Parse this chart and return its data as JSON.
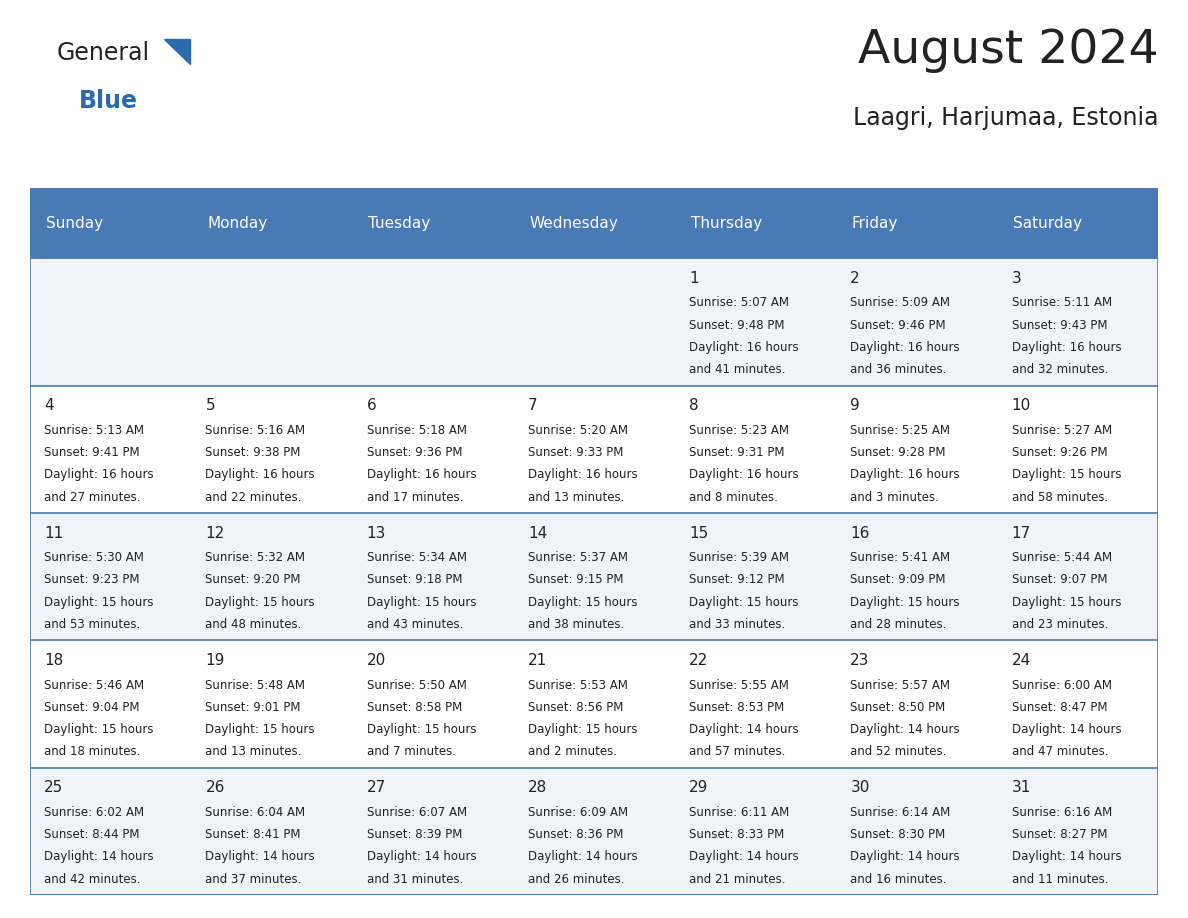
{
  "title": "August 2024",
  "subtitle": "Laagri, Harjumaa, Estonia",
  "header_color": "#4a7ab5",
  "header_text_color": "#ffffff",
  "day_names": [
    "Sunday",
    "Monday",
    "Tuesday",
    "Wednesday",
    "Thursday",
    "Friday",
    "Saturday"
  ],
  "bg_color": "#ffffff",
  "cell_bg_odd": "#f0f4f8",
  "cell_bg_even": "#ffffff",
  "text_color": "#222222",
  "grid_color": "#4a7ab5",
  "logo_general_color": "#222222",
  "logo_blue_color": "#2a6aad",
  "logo_triangle_color": "#2a6aad",
  "days": [
    {
      "day": 1,
      "col": 4,
      "row": 0,
      "sunrise": "5:07 AM",
      "sunset": "9:48 PM",
      "daylight": "16 hours and 41 minutes."
    },
    {
      "day": 2,
      "col": 5,
      "row": 0,
      "sunrise": "5:09 AM",
      "sunset": "9:46 PM",
      "daylight": "16 hours and 36 minutes."
    },
    {
      "day": 3,
      "col": 6,
      "row": 0,
      "sunrise": "5:11 AM",
      "sunset": "9:43 PM",
      "daylight": "16 hours and 32 minutes."
    },
    {
      "day": 4,
      "col": 0,
      "row": 1,
      "sunrise": "5:13 AM",
      "sunset": "9:41 PM",
      "daylight": "16 hours and 27 minutes."
    },
    {
      "day": 5,
      "col": 1,
      "row": 1,
      "sunrise": "5:16 AM",
      "sunset": "9:38 PM",
      "daylight": "16 hours and 22 minutes."
    },
    {
      "day": 6,
      "col": 2,
      "row": 1,
      "sunrise": "5:18 AM",
      "sunset": "9:36 PM",
      "daylight": "16 hours and 17 minutes."
    },
    {
      "day": 7,
      "col": 3,
      "row": 1,
      "sunrise": "5:20 AM",
      "sunset": "9:33 PM",
      "daylight": "16 hours and 13 minutes."
    },
    {
      "day": 8,
      "col": 4,
      "row": 1,
      "sunrise": "5:23 AM",
      "sunset": "9:31 PM",
      "daylight": "16 hours and 8 minutes."
    },
    {
      "day": 9,
      "col": 5,
      "row": 1,
      "sunrise": "5:25 AM",
      "sunset": "9:28 PM",
      "daylight": "16 hours and 3 minutes."
    },
    {
      "day": 10,
      "col": 6,
      "row": 1,
      "sunrise": "5:27 AM",
      "sunset": "9:26 PM",
      "daylight": "15 hours and 58 minutes."
    },
    {
      "day": 11,
      "col": 0,
      "row": 2,
      "sunrise": "5:30 AM",
      "sunset": "9:23 PM",
      "daylight": "15 hours and 53 minutes."
    },
    {
      "day": 12,
      "col": 1,
      "row": 2,
      "sunrise": "5:32 AM",
      "sunset": "9:20 PM",
      "daylight": "15 hours and 48 minutes."
    },
    {
      "day": 13,
      "col": 2,
      "row": 2,
      "sunrise": "5:34 AM",
      "sunset": "9:18 PM",
      "daylight": "15 hours and 43 minutes."
    },
    {
      "day": 14,
      "col": 3,
      "row": 2,
      "sunrise": "5:37 AM",
      "sunset": "9:15 PM",
      "daylight": "15 hours and 38 minutes."
    },
    {
      "day": 15,
      "col": 4,
      "row": 2,
      "sunrise": "5:39 AM",
      "sunset": "9:12 PM",
      "daylight": "15 hours and 33 minutes."
    },
    {
      "day": 16,
      "col": 5,
      "row": 2,
      "sunrise": "5:41 AM",
      "sunset": "9:09 PM",
      "daylight": "15 hours and 28 minutes."
    },
    {
      "day": 17,
      "col": 6,
      "row": 2,
      "sunrise": "5:44 AM",
      "sunset": "9:07 PM",
      "daylight": "15 hours and 23 minutes."
    },
    {
      "day": 18,
      "col": 0,
      "row": 3,
      "sunrise": "5:46 AM",
      "sunset": "9:04 PM",
      "daylight": "15 hours and 18 minutes."
    },
    {
      "day": 19,
      "col": 1,
      "row": 3,
      "sunrise": "5:48 AM",
      "sunset": "9:01 PM",
      "daylight": "15 hours and 13 minutes."
    },
    {
      "day": 20,
      "col": 2,
      "row": 3,
      "sunrise": "5:50 AM",
      "sunset": "8:58 PM",
      "daylight": "15 hours and 7 minutes."
    },
    {
      "day": 21,
      "col": 3,
      "row": 3,
      "sunrise": "5:53 AM",
      "sunset": "8:56 PM",
      "daylight": "15 hours and 2 minutes."
    },
    {
      "day": 22,
      "col": 4,
      "row": 3,
      "sunrise": "5:55 AM",
      "sunset": "8:53 PM",
      "daylight": "14 hours and 57 minutes."
    },
    {
      "day": 23,
      "col": 5,
      "row": 3,
      "sunrise": "5:57 AM",
      "sunset": "8:50 PM",
      "daylight": "14 hours and 52 minutes."
    },
    {
      "day": 24,
      "col": 6,
      "row": 3,
      "sunrise": "6:00 AM",
      "sunset": "8:47 PM",
      "daylight": "14 hours and 47 minutes."
    },
    {
      "day": 25,
      "col": 0,
      "row": 4,
      "sunrise": "6:02 AM",
      "sunset": "8:44 PM",
      "daylight": "14 hours and 42 minutes."
    },
    {
      "day": 26,
      "col": 1,
      "row": 4,
      "sunrise": "6:04 AM",
      "sunset": "8:41 PM",
      "daylight": "14 hours and 37 minutes."
    },
    {
      "day": 27,
      "col": 2,
      "row": 4,
      "sunrise": "6:07 AM",
      "sunset": "8:39 PM",
      "daylight": "14 hours and 31 minutes."
    },
    {
      "day": 28,
      "col": 3,
      "row": 4,
      "sunrise": "6:09 AM",
      "sunset": "8:36 PM",
      "daylight": "14 hours and 26 minutes."
    },
    {
      "day": 29,
      "col": 4,
      "row": 4,
      "sunrise": "6:11 AM",
      "sunset": "8:33 PM",
      "daylight": "14 hours and 21 minutes."
    },
    {
      "day": 30,
      "col": 5,
      "row": 4,
      "sunrise": "6:14 AM",
      "sunset": "8:30 PM",
      "daylight": "14 hours and 16 minutes."
    },
    {
      "day": 31,
      "col": 6,
      "row": 4,
      "sunrise": "6:16 AM",
      "sunset": "8:27 PM",
      "daylight": "14 hours and 11 minutes."
    }
  ]
}
